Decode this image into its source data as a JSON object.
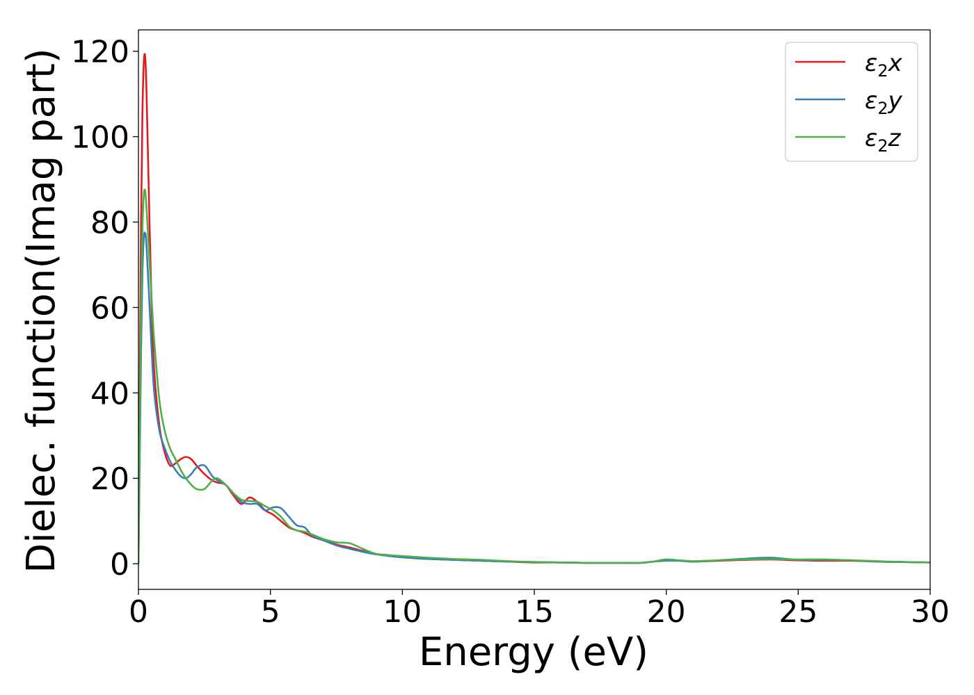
{
  "chart_data": {
    "type": "line",
    "xlabel": "Energy (eV)",
    "ylabel": "Dielec. function(Imag part)",
    "xlim": [
      0,
      30
    ],
    "ylim": [
      -6,
      125
    ],
    "xticks": [
      0,
      5,
      10,
      15,
      20,
      25,
      30
    ],
    "yticks": [
      0,
      20,
      40,
      60,
      80,
      100,
      120
    ],
    "grid": false,
    "legend_position": "top-right",
    "series": [
      {
        "name": "ε2x",
        "legend": {
          "base": "ε",
          "sub": "2",
          "tail": "x"
        },
        "color": "#e41a1c",
        "x": [
          0,
          0.05,
          0.1,
          0.15,
          0.2,
          0.25,
          0.3,
          0.4,
          0.5,
          0.6,
          0.8,
          1.0,
          1.2,
          1.4,
          1.6,
          1.8,
          2.0,
          2.2,
          2.5,
          2.8,
          3.0,
          3.3,
          3.6,
          3.9,
          4.2,
          4.5,
          4.8,
          5.1,
          5.4,
          5.7,
          6.0,
          6.3,
          6.6,
          7.0,
          7.5,
          8.0,
          8.5,
          9.0,
          9.5,
          10,
          11,
          12,
          13,
          14,
          15,
          16,
          17,
          18,
          19,
          19.5,
          20,
          20.5,
          21,
          22,
          23,
          24,
          25,
          26,
          27,
          28,
          29,
          30
        ],
        "y": [
          0,
          40,
          80,
          105,
          117,
          119,
          112,
          85,
          60,
          45,
          32,
          26,
          23,
          23.5,
          24.5,
          25,
          24.5,
          23,
          21,
          19.5,
          19,
          18.5,
          16,
          14,
          15.5,
          14.5,
          12.5,
          11.5,
          10,
          8.5,
          7.8,
          7.2,
          6.3,
          5.5,
          4.5,
          3.8,
          3.0,
          2.3,
          2.0,
          1.6,
          1.2,
          0.9,
          0.7,
          0.5,
          0.3,
          0.3,
          0.2,
          0.2,
          0.2,
          0.5,
          0.8,
          0.7,
          0.5,
          0.7,
          0.9,
          1.0,
          0.8,
          0.7,
          0.7,
          0.5,
          0.4,
          0.3
        ]
      },
      {
        "name": "ε2y",
        "legend": {
          "base": "ε",
          "sub": "2",
          "tail": "y"
        },
        "color": "#377eb8",
        "x": [
          0,
          0.05,
          0.1,
          0.15,
          0.2,
          0.25,
          0.3,
          0.4,
          0.5,
          0.6,
          0.8,
          1.0,
          1.2,
          1.4,
          1.6,
          1.8,
          2.0,
          2.2,
          2.5,
          2.8,
          3.0,
          3.3,
          3.6,
          3.9,
          4.2,
          4.5,
          4.8,
          5.1,
          5.4,
          5.7,
          6.0,
          6.3,
          6.6,
          7.0,
          7.5,
          8.0,
          8.5,
          9.0,
          9.5,
          10,
          11,
          12,
          13,
          14,
          15,
          16,
          17,
          18,
          19,
          19.5,
          20,
          20.5,
          21,
          22,
          23,
          24,
          25,
          26,
          27,
          28,
          29,
          30
        ],
        "y": [
          0,
          25,
          50,
          68,
          76,
          77.5,
          75,
          63,
          50,
          40,
          31,
          27,
          24,
          22,
          20.5,
          20,
          21,
          22.5,
          23,
          20.5,
          19.5,
          18.5,
          16.5,
          14.5,
          14,
          14,
          12.5,
          13.2,
          13,
          11,
          9,
          8.5,
          6.5,
          5.5,
          4.3,
          3.5,
          2.8,
          2.2,
          1.8,
          1.5,
          1.1,
          0.9,
          0.7,
          0.5,
          0.4,
          0.3,
          0.2,
          0.2,
          0.2,
          0.5,
          0.7,
          0.7,
          0.5,
          0.8,
          1.2,
          1.4,
          0.9,
          0.9,
          0.8,
          0.5,
          0.4,
          0.3
        ]
      },
      {
        "name": "ε2z",
        "legend": {
          "base": "ε",
          "sub": "2",
          "tail": "z"
        },
        "color": "#4daf4a",
        "x": [
          0,
          0.05,
          0.1,
          0.15,
          0.2,
          0.25,
          0.3,
          0.4,
          0.5,
          0.6,
          0.8,
          1.0,
          1.2,
          1.4,
          1.6,
          1.8,
          2.0,
          2.2,
          2.5,
          2.8,
          3.0,
          3.3,
          3.6,
          3.9,
          4.2,
          4.5,
          4.8,
          5.1,
          5.4,
          5.7,
          6.0,
          6.3,
          6.6,
          7.0,
          7.5,
          8.0,
          8.5,
          9.0,
          9.5,
          10,
          11,
          12,
          13,
          14,
          15,
          16,
          17,
          18,
          19,
          19.5,
          20,
          20.5,
          21,
          22,
          23,
          24,
          25,
          26,
          27,
          28,
          29,
          30
        ],
        "y": [
          0,
          30,
          60,
          78,
          86,
          87.5,
          84,
          73,
          62,
          52,
          38,
          31,
          27,
          24.5,
          22,
          20,
          18.5,
          17.5,
          17.5,
          19.5,
          20,
          18.5,
          16.5,
          15,
          14.7,
          14.5,
          13.5,
          12.5,
          11,
          8.8,
          7.8,
          7.5,
          6.8,
          5.8,
          5,
          4.8,
          3.5,
          2.3,
          2.0,
          1.8,
          1.4,
          1.1,
          0.9,
          0.6,
          0.4,
          0.3,
          0.2,
          0.2,
          0.2,
          0.5,
          1.0,
          0.8,
          0.6,
          0.8,
          1.0,
          1.1,
          1.0,
          1.0,
          0.8,
          0.6,
          0.4,
          0.3
        ]
      }
    ]
  }
}
